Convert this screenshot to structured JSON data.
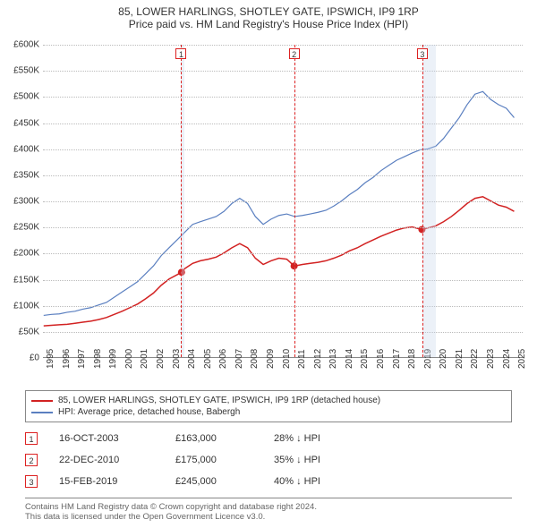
{
  "header": {
    "title": "85, LOWER HARLINGS, SHOTLEY GATE, IPSWICH, IP9 1RP",
    "subtitle": "Price paid vs. HM Land Registry's House Price Index (HPI)"
  },
  "chart": {
    "type": "line",
    "background_color": "#ffffff",
    "grid_color": "#bbbbbb",
    "xlim": [
      1995,
      2025.5
    ],
    "ylim": [
      0,
      600000
    ],
    "ytick_step": 50000,
    "yticks": [
      "£0",
      "£50K",
      "£100K",
      "£150K",
      "£200K",
      "£250K",
      "£300K",
      "£350K",
      "£400K",
      "£450K",
      "£500K",
      "£550K",
      "£600K"
    ],
    "xticks": [
      1995,
      1996,
      1997,
      1998,
      1999,
      2000,
      2001,
      2002,
      2003,
      2004,
      2005,
      2006,
      2007,
      2008,
      2009,
      2010,
      2011,
      2012,
      2013,
      2014,
      2015,
      2016,
      2017,
      2018,
      2019,
      2020,
      2021,
      2022,
      2023,
      2024,
      2025
    ],
    "label_fontsize": 10,
    "bands": [
      {
        "from": 2003.79,
        "to": 2004,
        "color": "rgba(200,215,235,0.35)",
        "marker": "1"
      },
      {
        "from": 2010.97,
        "to": 2011,
        "color": "rgba(200,215,235,0.35)",
        "marker": "2"
      },
      {
        "from": 2019.12,
        "to": 2020,
        "color": "rgba(200,215,235,0.35)",
        "marker": "3"
      }
    ],
    "series": [
      {
        "name": "hpi",
        "color": "#5a7fc0",
        "line_width": 1.2,
        "data": [
          [
            1995,
            80000
          ],
          [
            1995.5,
            82000
          ],
          [
            1996,
            83000
          ],
          [
            1996.5,
            86000
          ],
          [
            1997,
            88000
          ],
          [
            1997.5,
            92000
          ],
          [
            1998,
            95000
          ],
          [
            1998.5,
            100000
          ],
          [
            1999,
            105000
          ],
          [
            1999.5,
            115000
          ],
          [
            2000,
            125000
          ],
          [
            2000.5,
            135000
          ],
          [
            2001,
            145000
          ],
          [
            2001.5,
            160000
          ],
          [
            2002,
            175000
          ],
          [
            2002.5,
            195000
          ],
          [
            2003,
            210000
          ],
          [
            2003.5,
            225000
          ],
          [
            2004,
            240000
          ],
          [
            2004.5,
            255000
          ],
          [
            2005,
            260000
          ],
          [
            2005.5,
            265000
          ],
          [
            2006,
            270000
          ],
          [
            2006.5,
            280000
          ],
          [
            2007,
            295000
          ],
          [
            2007.5,
            305000
          ],
          [
            2008,
            295000
          ],
          [
            2008.5,
            270000
          ],
          [
            2009,
            255000
          ],
          [
            2009.5,
            265000
          ],
          [
            2010,
            272000
          ],
          [
            2010.5,
            275000
          ],
          [
            2011,
            270000
          ],
          [
            2011.5,
            272000
          ],
          [
            2012,
            275000
          ],
          [
            2012.5,
            278000
          ],
          [
            2013,
            282000
          ],
          [
            2013.5,
            290000
          ],
          [
            2014,
            300000
          ],
          [
            2014.5,
            312000
          ],
          [
            2015,
            322000
          ],
          [
            2015.5,
            335000
          ],
          [
            2016,
            345000
          ],
          [
            2016.5,
            358000
          ],
          [
            2017,
            368000
          ],
          [
            2017.5,
            378000
          ],
          [
            2018,
            385000
          ],
          [
            2018.5,
            392000
          ],
          [
            2019,
            398000
          ],
          [
            2019.5,
            400000
          ],
          [
            2020,
            405000
          ],
          [
            2020.5,
            420000
          ],
          [
            2021,
            440000
          ],
          [
            2021.5,
            460000
          ],
          [
            2022,
            485000
          ],
          [
            2022.5,
            505000
          ],
          [
            2023,
            510000
          ],
          [
            2023.5,
            495000
          ],
          [
            2024,
            485000
          ],
          [
            2024.5,
            478000
          ],
          [
            2025,
            460000
          ]
        ]
      },
      {
        "name": "property",
        "color": "#d22222",
        "line_width": 1.5,
        "data": [
          [
            1995,
            60000
          ],
          [
            1995.5,
            61000
          ],
          [
            1996,
            62000
          ],
          [
            1996.5,
            63000
          ],
          [
            1997,
            65000
          ],
          [
            1997.5,
            67000
          ],
          [
            1998,
            69000
          ],
          [
            1998.5,
            72000
          ],
          [
            1999,
            76000
          ],
          [
            1999.5,
            82000
          ],
          [
            2000,
            88000
          ],
          [
            2000.5,
            95000
          ],
          [
            2001,
            102000
          ],
          [
            2001.5,
            112000
          ],
          [
            2002,
            123000
          ],
          [
            2002.5,
            138000
          ],
          [
            2003,
            150000
          ],
          [
            2003.5,
            158000
          ],
          [
            2003.79,
            163000
          ],
          [
            2004,
            170000
          ],
          [
            2004.5,
            180000
          ],
          [
            2005,
            185000
          ],
          [
            2005.5,
            188000
          ],
          [
            2006,
            192000
          ],
          [
            2006.5,
            200000
          ],
          [
            2007,
            210000
          ],
          [
            2007.5,
            218000
          ],
          [
            2008,
            210000
          ],
          [
            2008.5,
            190000
          ],
          [
            2009,
            178000
          ],
          [
            2009.5,
            185000
          ],
          [
            2010,
            190000
          ],
          [
            2010.5,
            188000
          ],
          [
            2010.97,
            175000
          ],
          [
            2011,
            175000
          ],
          [
            2011.5,
            178000
          ],
          [
            2012,
            180000
          ],
          [
            2012.5,
            182000
          ],
          [
            2013,
            185000
          ],
          [
            2013.5,
            190000
          ],
          [
            2014,
            196000
          ],
          [
            2014.5,
            204000
          ],
          [
            2015,
            210000
          ],
          [
            2015.5,
            218000
          ],
          [
            2016,
            225000
          ],
          [
            2016.5,
            232000
          ],
          [
            2017,
            238000
          ],
          [
            2017.5,
            244000
          ],
          [
            2018,
            248000
          ],
          [
            2018.5,
            250000
          ],
          [
            2019.12,
            245000
          ],
          [
            2019.5,
            248000
          ],
          [
            2020,
            252000
          ],
          [
            2020.5,
            260000
          ],
          [
            2021,
            270000
          ],
          [
            2021.5,
            282000
          ],
          [
            2022,
            295000
          ],
          [
            2022.5,
            305000
          ],
          [
            2023,
            308000
          ],
          [
            2023.5,
            300000
          ],
          [
            2024,
            292000
          ],
          [
            2024.5,
            288000
          ],
          [
            2025,
            280000
          ]
        ]
      }
    ],
    "markers": [
      {
        "x": 2003.79,
        "y": 163000,
        "color": "#d22222"
      },
      {
        "x": 2010.97,
        "y": 175000,
        "color": "#d22222"
      },
      {
        "x": 2019.12,
        "y": 245000,
        "color": "#d22222"
      }
    ]
  },
  "legend": {
    "items": [
      {
        "color": "#d22222",
        "label": "85, LOWER HARLINGS, SHOTLEY GATE, IPSWICH, IP9 1RP (detached house)"
      },
      {
        "color": "#5a7fc0",
        "label": "HPI: Average price, detached house, Babergh"
      }
    ]
  },
  "transactions": [
    {
      "num": "1",
      "date": "16-OCT-2003",
      "price": "£163,000",
      "pct": "28% ↓ HPI"
    },
    {
      "num": "2",
      "date": "22-DEC-2010",
      "price": "£175,000",
      "pct": "35% ↓ HPI"
    },
    {
      "num": "3",
      "date": "15-FEB-2019",
      "price": "£245,000",
      "pct": "40% ↓ HPI"
    }
  ],
  "footer": {
    "line1": "Contains HM Land Registry data © Crown copyright and database right 2024.",
    "line2": "This data is licensed under the Open Government Licence v3.0."
  }
}
